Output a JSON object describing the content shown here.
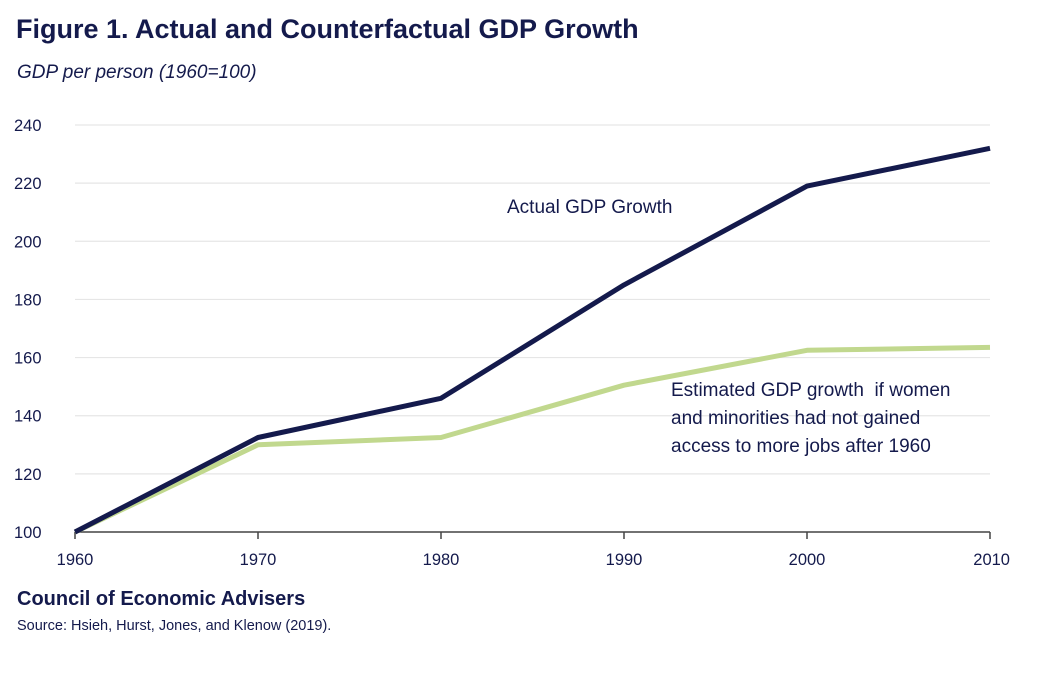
{
  "header": {
    "title": "Figure 1. Actual and Counterfactual GDP Growth",
    "subtitle": "GDP per person  (1960=100)"
  },
  "footer": {
    "organization": "Council of Economic Advisers",
    "source": "Source: Hsieh, Hurst, Jones, and Klenow (2019)."
  },
  "chart_data": {
    "type": "line",
    "title": "Figure 1. Actual and Counterfactual GDP Growth",
    "ylabel": "GDP per person  (1960=100)",
    "xlabel": "",
    "x": [
      1960,
      1970,
      1980,
      1990,
      2000,
      2010
    ],
    "xlim": [
      1960,
      2010
    ],
    "ylim": [
      100,
      240
    ],
    "yticks": [
      100,
      120,
      140,
      160,
      180,
      200,
      220,
      240
    ],
    "xticks": [
      1960,
      1970,
      1980,
      1990,
      2000,
      2010
    ],
    "grid": "horizontal",
    "legend": "none",
    "series": [
      {
        "name": "Actual GDP Growth",
        "color": "#141a4c",
        "values": [
          100,
          132.5,
          146,
          185,
          219,
          232
        ]
      },
      {
        "name": "Estimated GDP growth if women and minorities had not gained access to more jobs after 1960",
        "color": "#c1d88e",
        "values": [
          100,
          130,
          132.5,
          150.5,
          162.5,
          163.5
        ]
      }
    ],
    "annotations": [
      {
        "series": 0,
        "lines": [
          "Actual GDP Growth"
        ]
      },
      {
        "series": 1,
        "lines": [
          "Estimated GDP growth  if women",
          "and minorities had not gained",
          "access to more jobs after 1960"
        ]
      }
    ]
  }
}
